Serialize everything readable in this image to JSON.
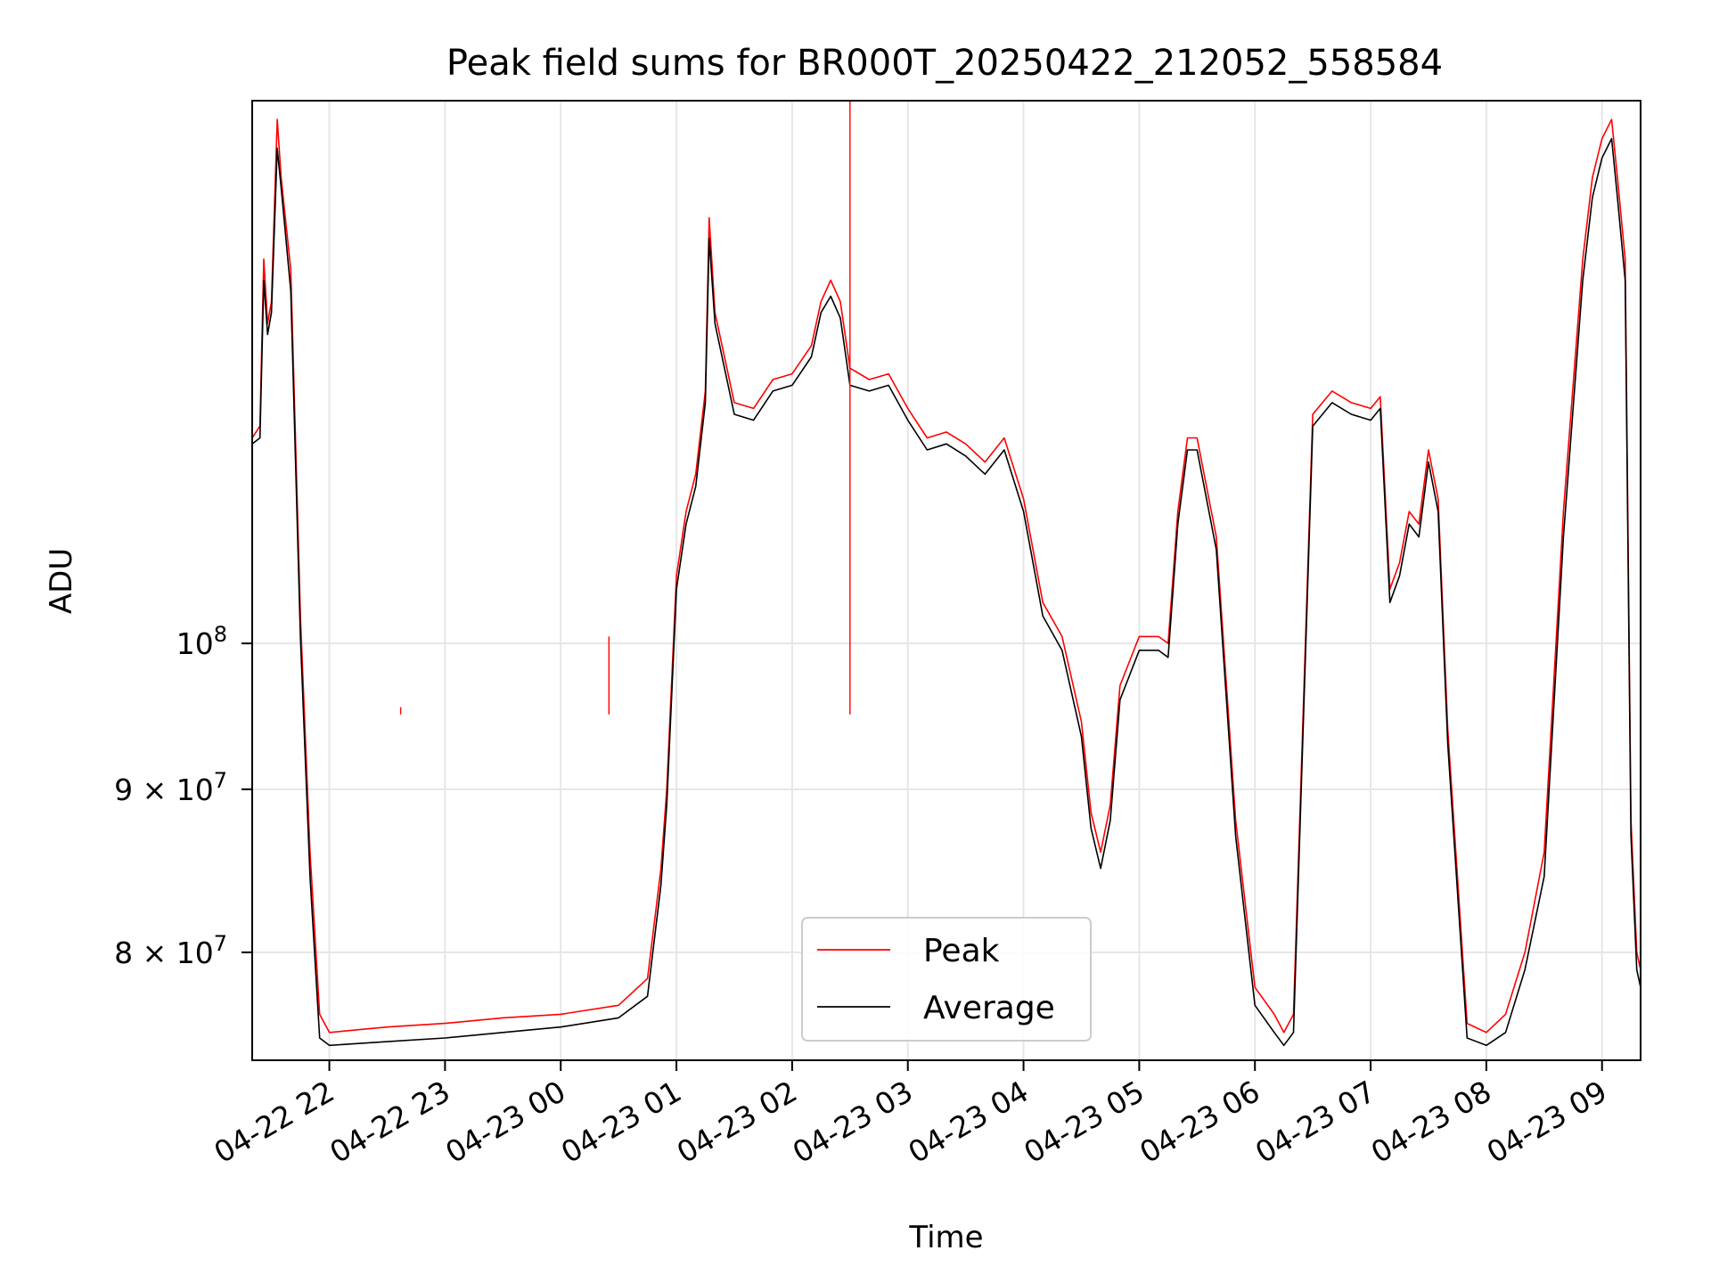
{
  "chart_data": {
    "type": "line",
    "title": "Peak field sums for BR000T_20250422_212052_558584",
    "xlabel": "Time",
    "ylabel": "ADU",
    "yscale": "log",
    "grid": true,
    "legend_position": "bottom-center",
    "xlim": [
      "2025-04-22 21:20",
      "2025-04-23 09:20"
    ],
    "ylim": [
      74000000,
      148000000
    ],
    "x_ticks": [
      {
        "x": "2025-04-22 22:00",
        "label": "04-22 22"
      },
      {
        "x": "2025-04-22 23:00",
        "label": "04-22 23"
      },
      {
        "x": "2025-04-23 00:00",
        "label": "04-23 00"
      },
      {
        "x": "2025-04-23 01:00",
        "label": "04-23 01"
      },
      {
        "x": "2025-04-23 02:00",
        "label": "04-23 02"
      },
      {
        "x": "2025-04-23 03:00",
        "label": "04-23 03"
      },
      {
        "x": "2025-04-23 04:00",
        "label": "04-23 04"
      },
      {
        "x": "2025-04-23 05:00",
        "label": "04-23 05"
      },
      {
        "x": "2025-04-23 06:00",
        "label": "04-23 06"
      },
      {
        "x": "2025-04-23 07:00",
        "label": "04-23 07"
      },
      {
        "x": "2025-04-23 08:00",
        "label": "04-23 08"
      },
      {
        "x": "2025-04-23 09:00",
        "label": "04-23 09"
      }
    ],
    "y_ticks": [
      {
        "y": 80000000,
        "base": "8 × 10",
        "exp": "7"
      },
      {
        "y": 90000000,
        "base": "9 × 10",
        "exp": "7"
      },
      {
        "y": 100000000,
        "base": "10",
        "exp": "8"
      }
    ],
    "series": [
      {
        "name": "Peak",
        "color": "#ff0000",
        "x": [
          "2025-04-22 21:20",
          "2025-04-22 21:24",
          "2025-04-22 21:26",
          "2025-04-22 21:28",
          "2025-04-22 21:30",
          "2025-04-22 21:33",
          "2025-04-22 21:35",
          "2025-04-22 21:40",
          "2025-04-22 21:45",
          "2025-04-22 21:50",
          "2025-04-22 21:55",
          "2025-04-22 22:00",
          "2025-04-22 22:30",
          "2025-04-22 23:00",
          "2025-04-22 23:30",
          "2025-04-23 00:00",
          "2025-04-23 00:30",
          "2025-04-23 00:45",
          "2025-04-23 00:52",
          "2025-04-23 00:55",
          "2025-04-23 01:00",
          "2025-04-23 01:05",
          "2025-04-23 01:10",
          "2025-04-23 01:15",
          "2025-04-23 01:17",
          "2025-04-23 01:20",
          "2025-04-23 01:30",
          "2025-04-23 01:40",
          "2025-04-23 01:50",
          "2025-04-23 02:00",
          "2025-04-23 02:10",
          "2025-04-23 02:15",
          "2025-04-23 02:20",
          "2025-04-23 02:25",
          "2025-04-23 02:30",
          "2025-04-23 02:40",
          "2025-04-23 02:50",
          "2025-04-23 03:00",
          "2025-04-23 03:10",
          "2025-04-23 03:20",
          "2025-04-23 03:30",
          "2025-04-23 03:40",
          "2025-04-23 03:50",
          "2025-04-23 04:00",
          "2025-04-23 04:10",
          "2025-04-23 04:20",
          "2025-04-23 04:30",
          "2025-04-23 04:35",
          "2025-04-23 04:40",
          "2025-04-23 04:45",
          "2025-04-23 04:50",
          "2025-04-23 05:00",
          "2025-04-23 05:10",
          "2025-04-23 05:15",
          "2025-04-23 05:20",
          "2025-04-23 05:25",
          "2025-04-23 05:30",
          "2025-04-23 05:40",
          "2025-04-23 05:50",
          "2025-04-23 06:00",
          "2025-04-23 06:10",
          "2025-04-23 06:15",
          "2025-04-23 06:20",
          "2025-04-23 06:30",
          "2025-04-23 06:40",
          "2025-04-23 06:50",
          "2025-04-23 07:00",
          "2025-04-23 07:05",
          "2025-04-23 07:10",
          "2025-04-23 07:15",
          "2025-04-23 07:20",
          "2025-04-23 07:25",
          "2025-04-23 07:30",
          "2025-04-23 07:35",
          "2025-04-23 07:40",
          "2025-04-23 07:50",
          "2025-04-23 08:00",
          "2025-04-23 08:10",
          "2025-04-23 08:20",
          "2025-04-23 08:30",
          "2025-04-23 08:40",
          "2025-04-23 08:50",
          "2025-04-23 08:55",
          "2025-04-23 09:00",
          "2025-04-23 09:05",
          "2025-04-23 09:08",
          "2025-04-23 09:12",
          "2025-04-23 09:15",
          "2025-04-23 09:18",
          "2025-04-23 09:20"
        ],
        "y": [
          116000000,
          117000000,
          132000000,
          126000000,
          128000000,
          146000000,
          140000000,
          131000000,
          102000000,
          86000000,
          76500000,
          75500000,
          75800000,
          76000000,
          76300000,
          76500000,
          77000000,
          78500000,
          85000000,
          90000000,
          105000000,
          110000000,
          113000000,
          120000000,
          136000000,
          127000000,
          119000000,
          118500000,
          121000000,
          121500000,
          124000000,
          128000000,
          130000000,
          128000000,
          122000000,
          121000000,
          121500000,
          118500000,
          116000000,
          116500000,
          115500000,
          114000000,
          116000000,
          111000000,
          103000000,
          100500000,
          94500000,
          88500000,
          86000000,
          89000000,
          97000000,
          100500000,
          100500000,
          100000000,
          110000000,
          116000000,
          116000000,
          108000000,
          88000000,
          78000000,
          76500000,
          75500000,
          76500000,
          118000000,
          120000000,
          119000000,
          118500000,
          119500000,
          104000000,
          106000000,
          110000000,
          109000000,
          115000000,
          111000000,
          94000000,
          76000000,
          75500000,
          76500000,
          80000000,
          86000000,
          110000000,
          132000000,
          140000000,
          144000000,
          146000000,
          140000000,
          132000000,
          88000000,
          80000000,
          79000000
        ]
      },
      {
        "name": "Average",
        "color": "#000000",
        "x": [
          "2025-04-22 21:20",
          "2025-04-22 21:24",
          "2025-04-22 21:26",
          "2025-04-22 21:28",
          "2025-04-22 21:30",
          "2025-04-22 21:33",
          "2025-04-22 21:35",
          "2025-04-22 21:40",
          "2025-04-22 21:45",
          "2025-04-22 21:50",
          "2025-04-22 21:55",
          "2025-04-22 22:00",
          "2025-04-22 22:30",
          "2025-04-22 23:00",
          "2025-04-22 23:30",
          "2025-04-23 00:00",
          "2025-04-23 00:30",
          "2025-04-23 00:45",
          "2025-04-23 00:52",
          "2025-04-23 00:55",
          "2025-04-23 01:00",
          "2025-04-23 01:05",
          "2025-04-23 01:10",
          "2025-04-23 01:15",
          "2025-04-23 01:17",
          "2025-04-23 01:20",
          "2025-04-23 01:30",
          "2025-04-23 01:40",
          "2025-04-23 01:50",
          "2025-04-23 02:00",
          "2025-04-23 02:10",
          "2025-04-23 02:15",
          "2025-04-23 02:20",
          "2025-04-23 02:25",
          "2025-04-23 02:30",
          "2025-04-23 02:40",
          "2025-04-23 02:50",
          "2025-04-23 03:00",
          "2025-04-23 03:10",
          "2025-04-23 03:20",
          "2025-04-23 03:30",
          "2025-04-23 03:40",
          "2025-04-23 03:50",
          "2025-04-23 04:00",
          "2025-04-23 04:10",
          "2025-04-23 04:20",
          "2025-04-23 04:30",
          "2025-04-23 04:35",
          "2025-04-23 04:40",
          "2025-04-23 04:45",
          "2025-04-23 04:50",
          "2025-04-23 05:00",
          "2025-04-23 05:10",
          "2025-04-23 05:15",
          "2025-04-23 05:20",
          "2025-04-23 05:25",
          "2025-04-23 05:30",
          "2025-04-23 05:40",
          "2025-04-23 05:50",
          "2025-04-23 06:00",
          "2025-04-23 06:10",
          "2025-04-23 06:15",
          "2025-04-23 06:20",
          "2025-04-23 06:30",
          "2025-04-23 06:40",
          "2025-04-23 06:50",
          "2025-04-23 07:00",
          "2025-04-23 07:05",
          "2025-04-23 07:10",
          "2025-04-23 07:15",
          "2025-04-23 07:20",
          "2025-04-23 07:25",
          "2025-04-23 07:30",
          "2025-04-23 07:35",
          "2025-04-23 07:40",
          "2025-04-23 07:50",
          "2025-04-23 08:00",
          "2025-04-23 08:10",
          "2025-04-23 08:20",
          "2025-04-23 08:30",
          "2025-04-23 08:40",
          "2025-04-23 08:50",
          "2025-04-23 08:55",
          "2025-04-23 09:00",
          "2025-04-23 09:05",
          "2025-04-23 09:08",
          "2025-04-23 09:12",
          "2025-04-23 09:15",
          "2025-04-23 09:18",
          "2025-04-23 09:20"
        ],
        "y": [
          115500000,
          116000000,
          130000000,
          125000000,
          127000000,
          143000000,
          139000000,
          129000000,
          100500000,
          84500000,
          75200000,
          74800000,
          75000000,
          75200000,
          75500000,
          75800000,
          76300000,
          77500000,
          84000000,
          89000000,
          104000000,
          109000000,
          112000000,
          119000000,
          134000000,
          126000000,
          118000000,
          117500000,
          120000000,
          120500000,
          123000000,
          127000000,
          128500000,
          126500000,
          120500000,
          120000000,
          120500000,
          117500000,
          115000000,
          115500000,
          114500000,
          113000000,
          115000000,
          110000000,
          102000000,
          99500000,
          93500000,
          87500000,
          85000000,
          88000000,
          96000000,
          99500000,
          99500000,
          99000000,
          109000000,
          115000000,
          115000000,
          107000000,
          87000000,
          77000000,
          75500000,
          74800000,
          75500000,
          117000000,
          119000000,
          118000000,
          117500000,
          118500000,
          103000000,
          105000000,
          109000000,
          108000000,
          114000000,
          110000000,
          93000000,
          75200000,
          74800000,
          75500000,
          79000000,
          84500000,
          108000000,
          130000000,
          138000000,
          142000000,
          144000000,
          138000000,
          130000000,
          87000000,
          79000000,
          78000000
        ]
      }
    ],
    "annotations": [
      {
        "x": "2025-04-23 02:30",
        "y": 148000000,
        "series": "Peak",
        "note": "spike to top of axis"
      },
      {
        "x": "2025-04-23 00:25",
        "y": 100500000,
        "series": "Peak",
        "note": "spike"
      },
      {
        "x": "2025-04-22 22:37",
        "y": 95500000,
        "series": "Peak",
        "note": "spike"
      }
    ]
  }
}
